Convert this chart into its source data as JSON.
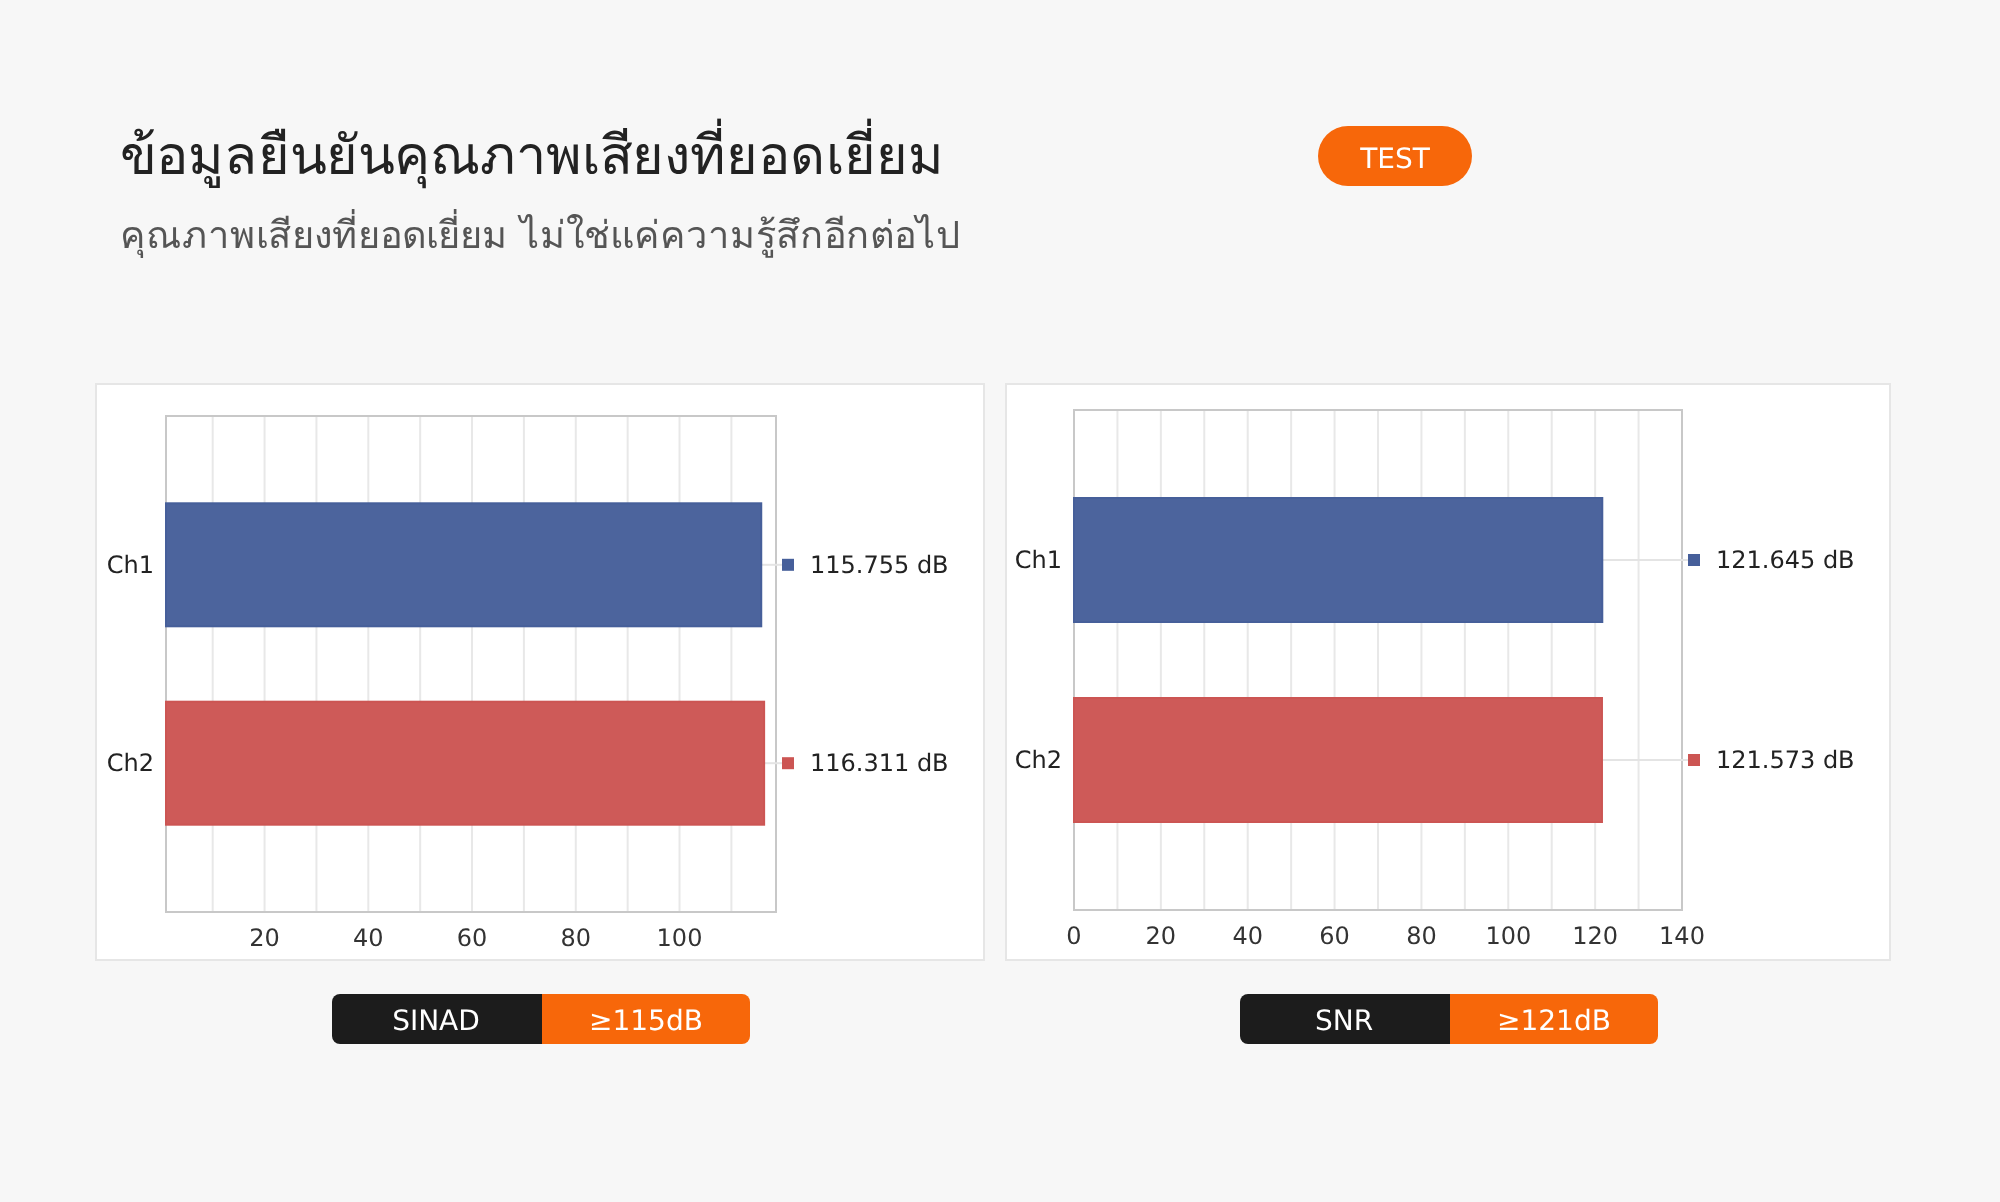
{
  "chart_data": [
    {
      "type": "bar",
      "orientation": "horizontal",
      "title": "ข้อมูลยืนยันคุณภาพเสียงที่ยอดเยี่ยม",
      "subtitle": "คุณภาพเสียงที่ยอดเยี่ยม ไม่ใช่แค่ความรู้สึกอีกต่อไป",
      "categories": [
        "Ch1",
        "Ch2"
      ],
      "values": [
        115.755,
        116.311
      ],
      "colors": [
        "#465f9a",
        "#cc5553"
      ],
      "value_labels": [
        "115.755 dB",
        "116.311 dB"
      ],
      "xlim": [
        1,
        118.6
      ],
      "xticks": [
        {
          "value": 10,
          "label": null
        },
        20,
        {
          "value": 30,
          "label": null
        },
        40,
        {
          "value": 50,
          "label": null
        },
        60,
        {
          "value": 70,
          "label": null
        },
        80,
        {
          "value": 90,
          "label": null
        },
        100,
        {
          "value": 110,
          "label": null
        }
      ],
      "grid": "x",
      "annotations": [
        "TEST",
        "SINAD",
        "≥115dB"
      ]
    },
    {
      "type": "bar",
      "orientation": "horizontal",
      "categories": [
        "Ch1",
        "Ch2"
      ],
      "values": [
        121.645,
        121.573
      ],
      "colors": [
        "#465f9a",
        "#cc5553"
      ],
      "value_labels": [
        "121.645 dB",
        "121.573 dB"
      ],
      "xlim": [
        0,
        140
      ],
      "xticks": [
        0,
        {
          "value": 10,
          "label": null
        },
        20,
        {
          "value": 30,
          "label": null
        },
        40,
        {
          "value": 50,
          "label": null
        },
        60,
        {
          "value": 70,
          "label": null
        },
        80,
        {
          "value": 90,
          "label": null
        },
        100,
        {
          "value": 110,
          "label": null
        },
        120,
        {
          "value": 130,
          "label": null
        },
        140
      ],
      "grid": "x",
      "annotations": [
        "SNR",
        "≥121dB"
      ]
    }
  ]
}
